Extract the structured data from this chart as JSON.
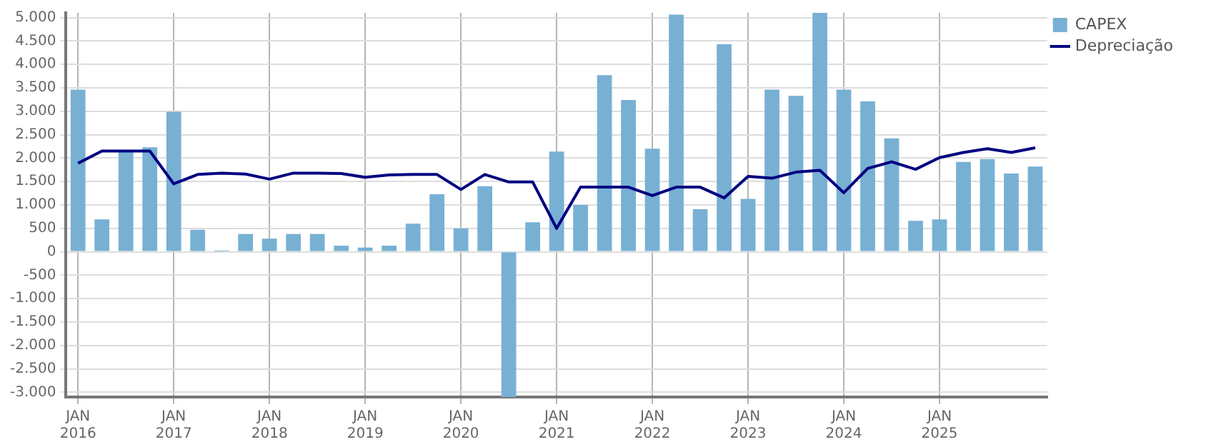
{
  "chart_data": {
    "type": "bar",
    "categories": [
      "JAN\n2016",
      null,
      null,
      null,
      "JAN\n2017",
      null,
      null,
      null,
      "JAN\n2018",
      null,
      null,
      null,
      "JAN\n2019",
      null,
      null,
      null,
      "JAN\n2020",
      null,
      null,
      null,
      "JAN\n2021",
      null,
      null,
      null,
      "JAN\n2022",
      null,
      null,
      null,
      "JAN\n2023",
      null,
      null,
      null,
      "JAN\n2024",
      null,
      null,
      null,
      "JAN\n2025",
      null,
      null,
      null,
      null
    ],
    "series": [
      {
        "name": "CAPEX",
        "color": "#78b0d4",
        "values": [
          3460,
          690,
          2150,
          2230,
          2990,
          470,
          30,
          380,
          280,
          380,
          380,
          130,
          90,
          130,
          600,
          1230,
          500,
          1400,
          -3100,
          630,
          2140,
          1000,
          3770,
          3240,
          2200,
          5060,
          910,
          4430,
          1130,
          3460,
          3330,
          5100,
          3460,
          3210,
          2420,
          660,
          690,
          1920,
          1980,
          1670,
          1820
        ]
      },
      {
        "name": "Depreciação",
        "type": "line",
        "color": "#000080",
        "values": [
          1890,
          2150,
          2150,
          2150,
          1450,
          1650,
          1680,
          1660,
          1550,
          1680,
          1680,
          1670,
          1590,
          1640,
          1650,
          1650,
          1330,
          1650,
          1490,
          1490,
          500,
          1380,
          1380,
          1380,
          1200,
          1380,
          1380,
          1150,
          1610,
          1570,
          1700,
          1740,
          1260,
          1780,
          1920,
          1760,
          2010,
          2120,
          2200,
          2120,
          2220
        ]
      }
    ],
    "ylim": [
      -3100,
      5100
    ],
    "yticks": [
      {
        "value": -3000,
        "label": "-3.000"
      },
      {
        "value": -2500,
        "label": "-2.500"
      },
      {
        "value": -2000,
        "label": "-2.000"
      },
      {
        "value": -1500,
        "label": "-1.500"
      },
      {
        "value": -1000,
        "label": "-1.000"
      },
      {
        "value": -500,
        "label": "-500"
      },
      0,
      500,
      {
        "value": 1000,
        "label": "1.000"
      },
      {
        "value": 1500,
        "label": "1.500"
      },
      {
        "value": 2000,
        "label": "2.000"
      },
      {
        "value": 2500,
        "label": "2.500"
      },
      {
        "value": 3000,
        "label": "3.000"
      },
      {
        "value": 3500,
        "label": "3.500"
      },
      {
        "value": 4000,
        "label": "4.000"
      },
      {
        "value": 4500,
        "label": "4.500"
      },
      {
        "value": 5000,
        "label": "5.000"
      }
    ],
    "grid": true,
    "legend": "top right",
    "marker": "none"
  }
}
